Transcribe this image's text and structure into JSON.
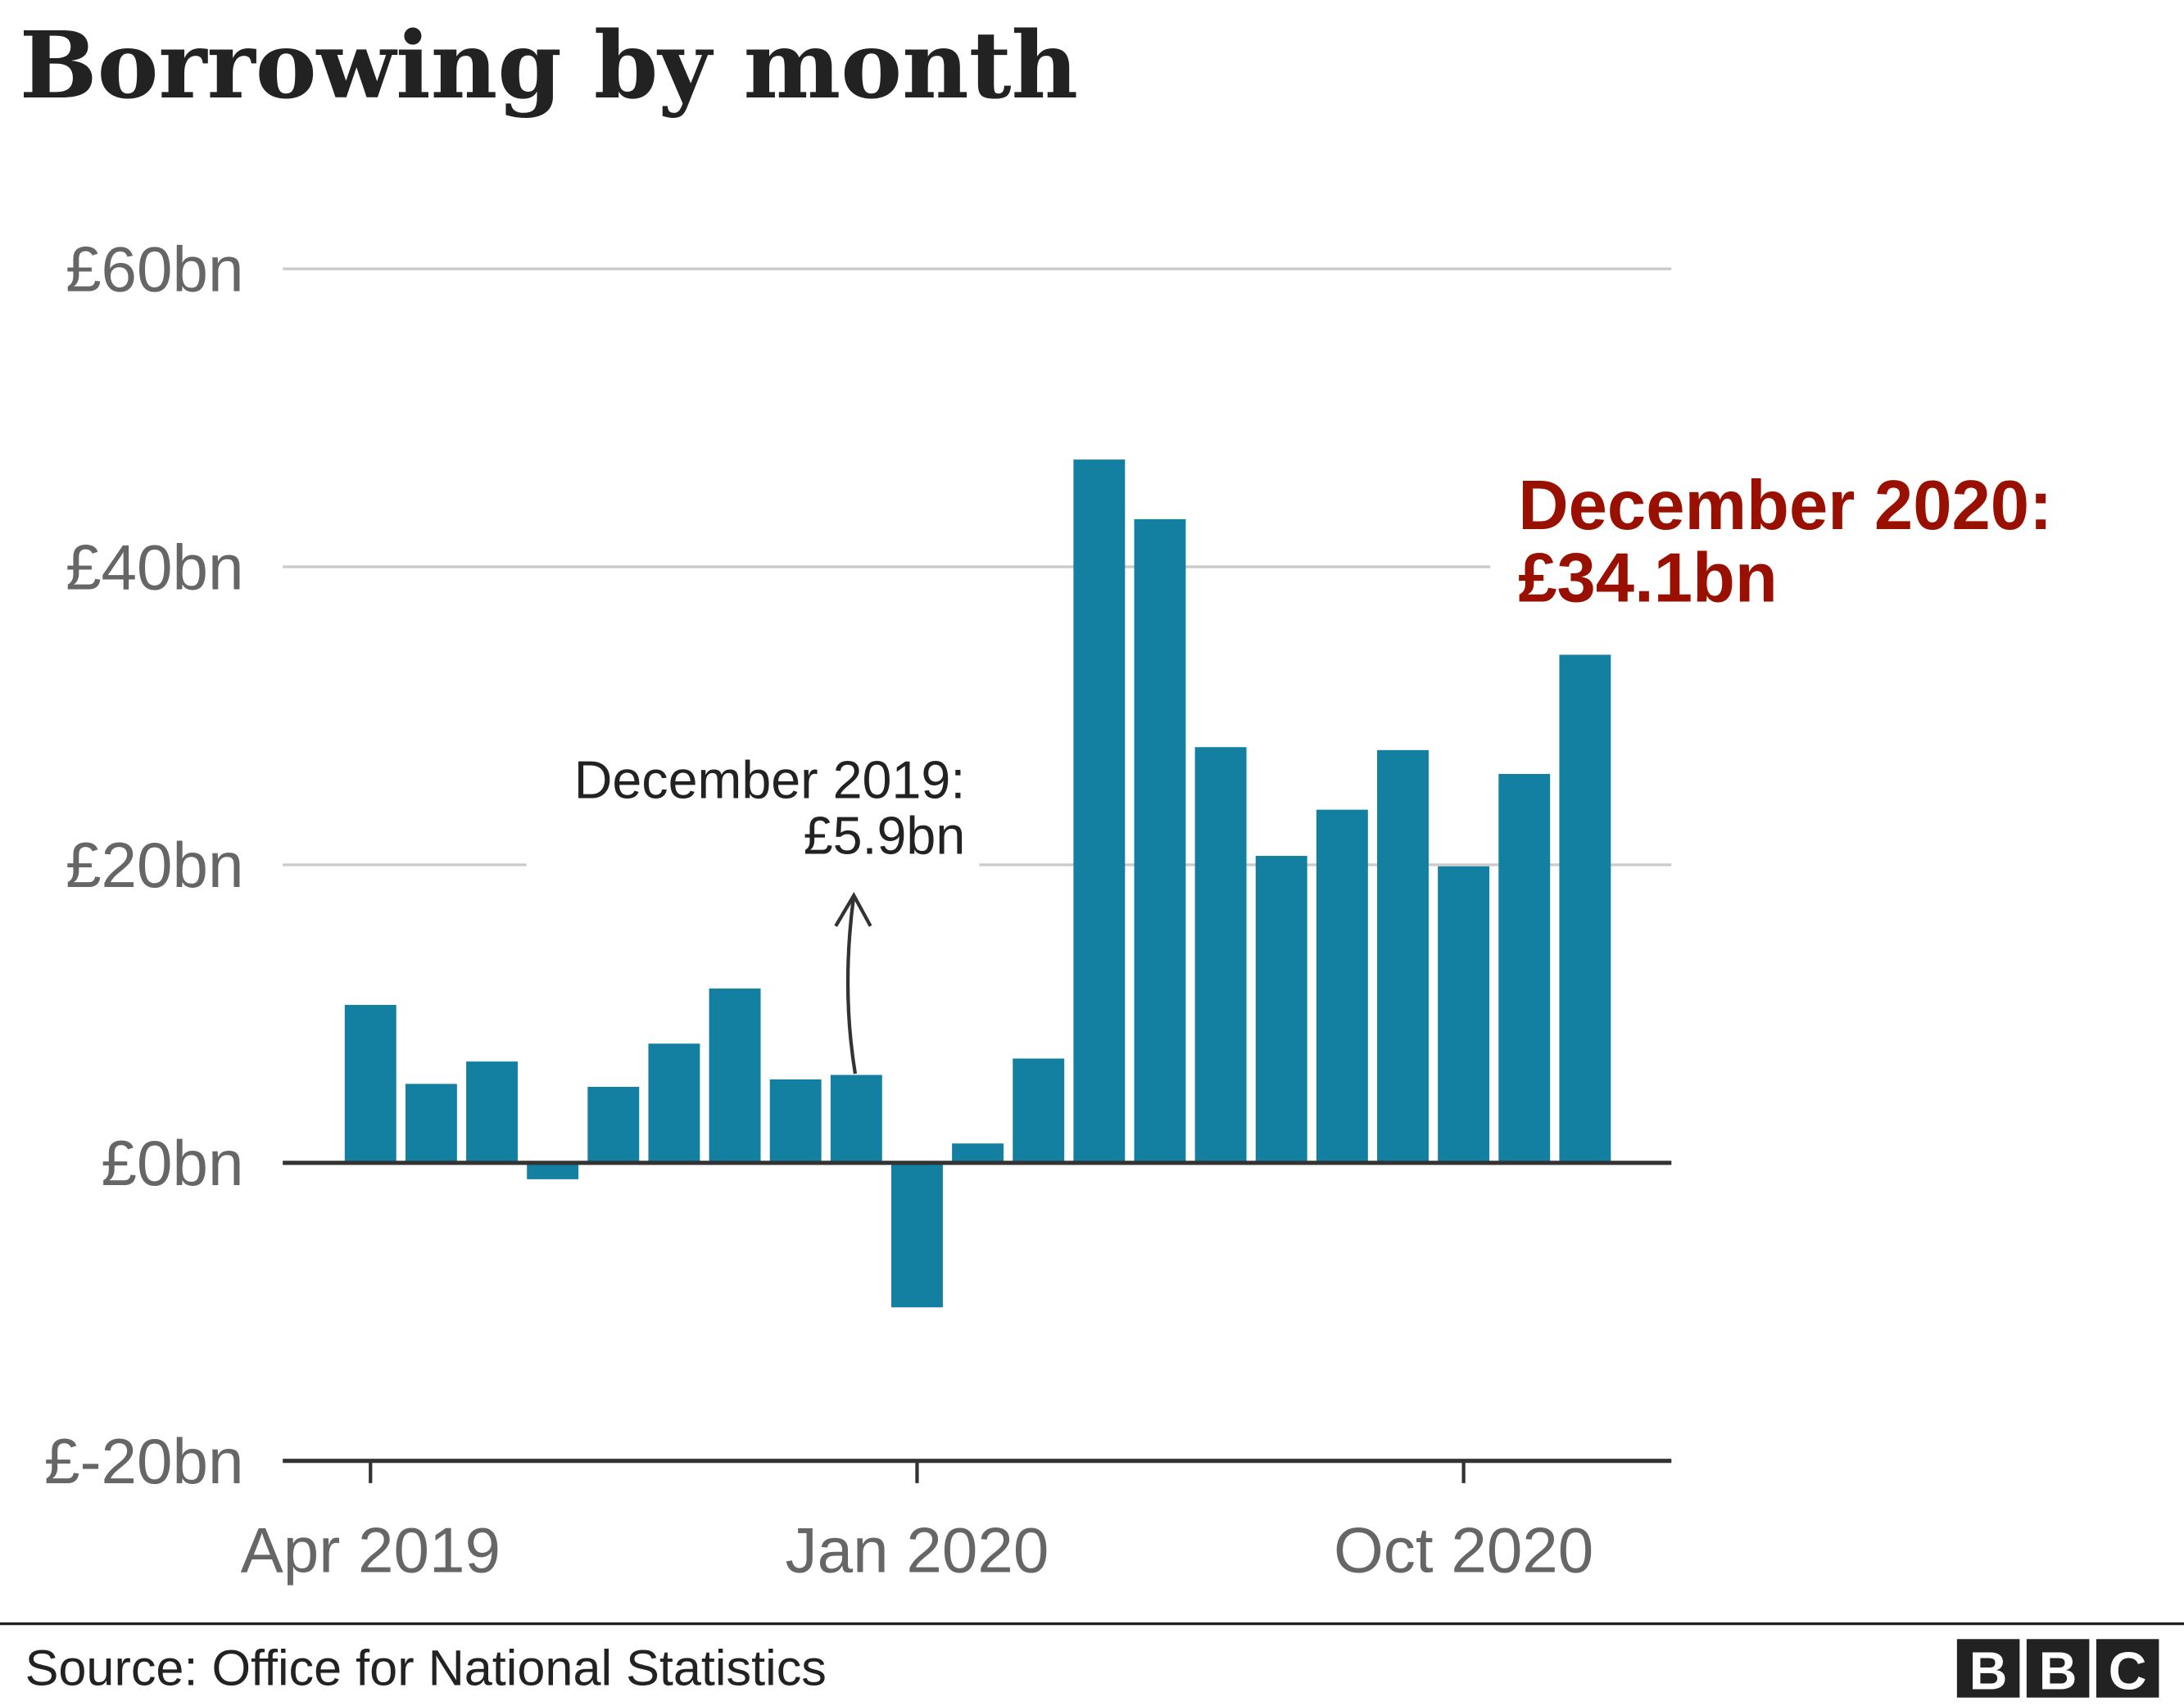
{
  "chart_data": {
    "type": "bar",
    "title": "Borrowing by month",
    "xlabel": "",
    "ylabel": "",
    "ylim": [
      -20,
      60
    ],
    "y_ticks": [
      {
        "value": 60,
        "label": "£60bn"
      },
      {
        "value": 40,
        "label": "£40bn"
      },
      {
        "value": 20,
        "label": "£20bn"
      },
      {
        "value": 0,
        "label": "£0bn"
      },
      {
        "value": -20,
        "label": "£-20bn"
      }
    ],
    "x_ticks": [
      {
        "index": 0,
        "label": "Apr 2019"
      },
      {
        "index": 9,
        "label": "Jan 2020"
      },
      {
        "index": 18,
        "label": "Oct 2020"
      }
    ],
    "grid": true,
    "bar_color": "#1380a1",
    "categories": [
      "Apr 2019",
      "May 2019",
      "Jun 2019",
      "Jul 2019",
      "Aug 2019",
      "Sep 2019",
      "Oct 2019",
      "Nov 2019",
      "Dec 2019",
      "Jan 2020",
      "Feb 2020",
      "Mar 2020",
      "Apr 2020",
      "May 2020",
      "Jun 2020",
      "Jul 2020",
      "Aug 2020",
      "Sep 2020",
      "Oct 2020",
      "Nov 2020",
      "Dec 2020"
    ],
    "values": [
      10.6,
      5.3,
      6.8,
      -1.1,
      5.1,
      8.0,
      11.7,
      5.6,
      5.9,
      -9.7,
      1.3,
      7.0,
      47.2,
      43.2,
      27.9,
      20.6,
      23.7,
      27.7,
      19.9,
      26.1,
      34.1
    ],
    "annotations": [
      {
        "index": 20,
        "line1": "December 2020:",
        "line2": "£34.1bn",
        "color": "#990f00"
      },
      {
        "index": 8,
        "line1": "December 2019:",
        "line2": "£5.9bn",
        "color": "#222222"
      }
    ]
  },
  "footer": {
    "source": "Source: Office for National Statistics",
    "logo_letters": [
      "B",
      "B",
      "C"
    ]
  }
}
